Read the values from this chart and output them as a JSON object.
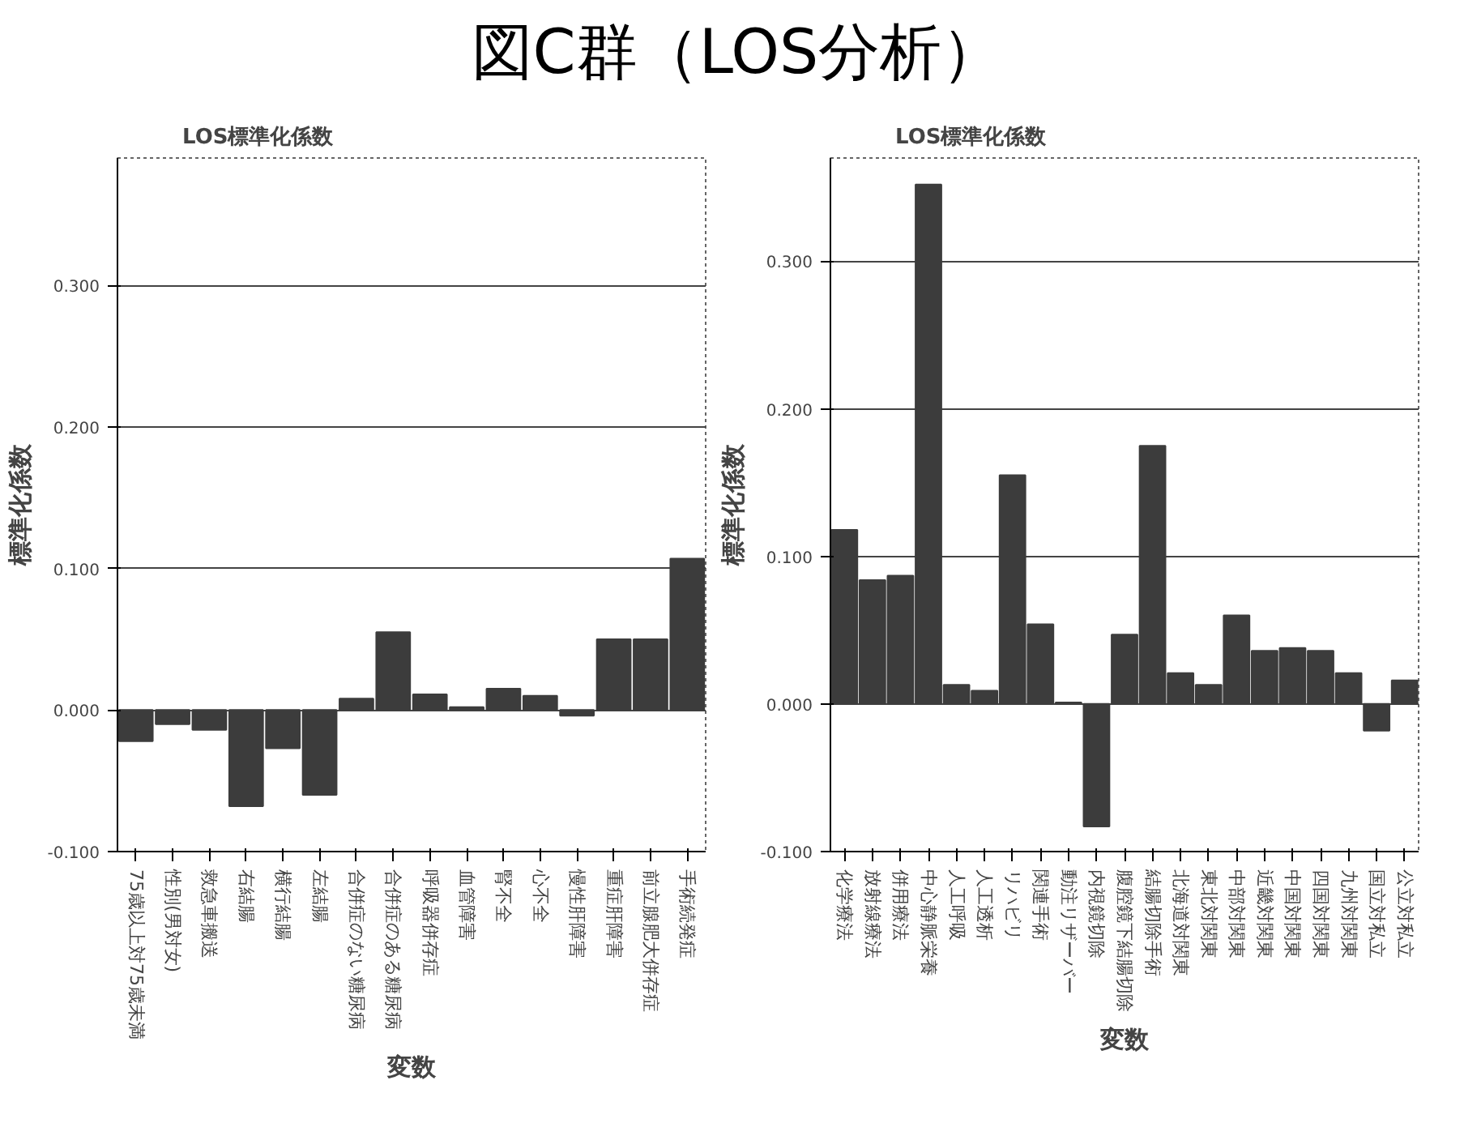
{
  "chart_data": [
    {
      "type": "bar",
      "title": "図C群（LOS分析）",
      "subtitle": "LOS標準化係数",
      "xlabel": "変数",
      "ylabel": "標準化係数",
      "color": "#3c3c3c",
      "grid": "y",
      "categories": [
        "75歳以上対75歳未満",
        "性別(男対女)",
        "救急車搬送",
        "右結腸",
        "横行結腸",
        "左結腸",
        "合併症のない糖尿病",
        "合併症のある糖尿病",
        "呼吸器併存症",
        "血管障害",
        "腎不全",
        "心不全",
        "慢性肝障害",
        "重症肝障害",
        "前立腺肥大併存症",
        "手術続発症"
      ],
      "values": [
        -0.022,
        -0.01,
        -0.014,
        -0.068,
        -0.027,
        -0.06,
        0.008,
        0.055,
        0.011,
        0.002,
        0.015,
        0.01,
        -0.004,
        0.05,
        0.05,
        0.107
      ],
      "ylim": [
        -0.1,
        0.39
      ],
      "yticks": [
        {
          "value": -0.1,
          "label": "-0.100"
        },
        {
          "value": 0,
          "label": "0.000"
        },
        {
          "value": 0.1,
          "label": "0.100"
        },
        {
          "value": 0.2,
          "label": "0.200"
        },
        {
          "value": 0.3,
          "label": "0.300"
        }
      ]
    },
    {
      "type": "bar",
      "subtitle": "LOS標準化係数",
      "xlabel": "変数",
      "ylabel": "標準化係数",
      "color": "#3c3c3c",
      "grid": "y",
      "categories": [
        "化学療法",
        "放射線療法",
        "併用療法",
        "中心静脈栄養",
        "人工呼吸",
        "人工透析",
        "リハビリ",
        "関連手術",
        "動注リザーバー",
        "内視鏡切除",
        "腹腔鏡下結腸切除",
        "結腸切除手術",
        "北海道対関東",
        "東北対関東",
        "中部対関東",
        "近畿対関東",
        "中国対関東",
        "四国対関東",
        "九州対関東",
        "国立対私立",
        "公立対私立"
      ],
      "values": [
        0.118,
        0.084,
        0.087,
        0.352,
        0.013,
        0.009,
        0.155,
        0.054,
        0.001,
        -0.083,
        0.047,
        0.175,
        0.021,
        0.013,
        0.06,
        0.036,
        0.038,
        0.036,
        0.021,
        -0.018,
        0.016
      ],
      "ylim": [
        -0.1,
        0.37
      ],
      "yticks": [
        {
          "value": -0.1,
          "label": "-0.100"
        },
        {
          "value": 0,
          "label": "0.000"
        },
        {
          "value": 0.1,
          "label": "0.100"
        },
        {
          "value": 0.2,
          "label": "0.200"
        },
        {
          "value": 0.3,
          "label": "0.300"
        }
      ]
    }
  ]
}
